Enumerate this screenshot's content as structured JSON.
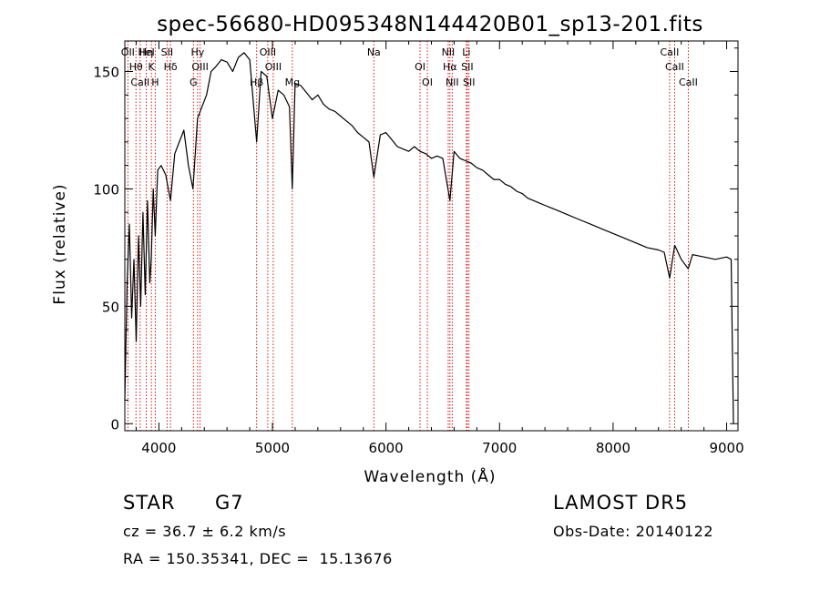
{
  "chart_data": {
    "type": "line",
    "title": "spec-56680-HD095348N144420B01_sp13-201.fits",
    "xlabel": "Wavelength (Å)",
    "ylabel": "Flux (relative)",
    "xlim": [
      3700,
      9100
    ],
    "ylim": [
      -3,
      163
    ],
    "xticks": [
      {
        "label": "4000",
        "value": 4000
      },
      {
        "label": "5000",
        "value": 5000
      },
      {
        "label": "6000",
        "value": 6000
      },
      {
        "label": "7000",
        "value": 7000
      },
      {
        "label": "8000",
        "value": 8000
      },
      {
        "label": "9000",
        "value": 9000
      }
    ],
    "yticks": [
      {
        "label": "0",
        "value": 0
      },
      {
        "label": "50",
        "value": 50
      },
      {
        "label": "100",
        "value": 100
      },
      {
        "label": "150",
        "value": 150
      }
    ],
    "grid": false,
    "series": [
      {
        "color": "#000000",
        "x": [
          3700,
          3720,
          3740,
          3760,
          3780,
          3800,
          3820,
          3840,
          3860,
          3880,
          3900,
          3920,
          3933,
          3950,
          3968,
          3990,
          4020,
          4060,
          4102,
          4140,
          4180,
          4220,
          4260,
          4300,
          4340,
          4380,
          4420,
          4460,
          4500,
          4550,
          4600,
          4650,
          4700,
          4750,
          4800,
          4861,
          4900,
          4950,
          5000,
          5050,
          5100,
          5150,
          5175,
          5200,
          5250,
          5300,
          5350,
          5400,
          5450,
          5500,
          5550,
          5600,
          5650,
          5700,
          5750,
          5800,
          5850,
          5893,
          5950,
          6000,
          6050,
          6100,
          6150,
          6200,
          6250,
          6300,
          6350,
          6400,
          6450,
          6500,
          6563,
          6600,
          6650,
          6700,
          6750,
          6800,
          6850,
          6900,
          6950,
          7000,
          7050,
          7100,
          7150,
          7200,
          7250,
          7300,
          7350,
          7400,
          7450,
          7500,
          7600,
          7700,
          7800,
          7900,
          8000,
          8100,
          8200,
          8300,
          8400,
          8450,
          8498,
          8542,
          8600,
          8662,
          8700,
          8800,
          8900,
          9000,
          9040,
          9060
        ],
        "y": [
          10,
          60,
          85,
          45,
          70,
          35,
          80,
          50,
          90,
          55,
          95,
          60,
          70,
          100,
          80,
          108,
          110,
          106,
          95,
          115,
          120,
          125,
          110,
          100,
          130,
          135,
          140,
          150,
          152,
          155,
          154,
          150,
          156,
          158,
          155,
          120,
          150,
          148,
          130,
          142,
          140,
          135,
          100,
          145,
          144,
          141,
          138,
          140,
          136,
          134,
          133,
          131,
          129,
          127,
          124,
          122,
          120,
          105,
          123,
          124,
          121,
          118,
          117,
          116,
          118,
          116,
          115,
          113,
          114,
          113,
          95,
          116,
          113,
          112,
          111,
          109,
          108,
          106,
          104,
          104,
          102,
          101,
          99,
          98,
          96,
          95,
          94,
          93,
          92,
          91,
          89,
          87,
          85,
          83,
          81,
          79,
          77,
          75,
          74,
          73,
          62,
          76,
          70,
          66,
          72,
          71,
          70,
          71,
          70,
          0
        ]
      }
    ],
    "lines": [
      {
        "x": 3727,
        "labels": [
          "OII"
        ]
      },
      {
        "x": 3798,
        "labels": [
          "Hθ"
        ]
      },
      {
        "x": 3835,
        "labels": [
          "CaII"
        ]
      },
      {
        "x": 3889,
        "labels": [
          "HeI",
          "Hη"
        ]
      },
      {
        "x": 3934,
        "labels": [
          "K"
        ]
      },
      {
        "x": 3968,
        "labels": [
          "H"
        ]
      },
      {
        "x": 4072,
        "labels": [
          "SII"
        ]
      },
      {
        "x": 4102,
        "labels": [
          "Hδ"
        ]
      },
      {
        "x": 4304,
        "labels": [
          "G"
        ]
      },
      {
        "x": 4341,
        "labels": [
          "Hγ"
        ]
      },
      {
        "x": 4363,
        "labels": [
          "OIII"
        ]
      },
      {
        "x": 4861,
        "labels": [
          "Hβ"
        ]
      },
      {
        "x": 4959,
        "labels": [
          "OIII"
        ]
      },
      {
        "x": 5007,
        "labels": [
          "OIII"
        ]
      },
      {
        "x": 5175,
        "labels": [
          "Mg"
        ]
      },
      {
        "x": 5893,
        "labels": [
          "Na"
        ]
      },
      {
        "x": 6300,
        "labels": [
          "OI"
        ]
      },
      {
        "x": 6364,
        "labels": [
          "OI"
        ]
      },
      {
        "x": 6548,
        "labels": [
          "NII"
        ]
      },
      {
        "x": 6563,
        "labels": [
          "Hα"
        ]
      },
      {
        "x": 6583,
        "labels": [
          "NII"
        ]
      },
      {
        "x": 6708,
        "labels": [
          "Li"
        ]
      },
      {
        "x": 6716,
        "labels": [
          "SII"
        ]
      },
      {
        "x": 6731,
        "labels": [
          "SII"
        ]
      },
      {
        "x": 8498,
        "labels": [
          "CaII"
        ]
      },
      {
        "x": 8542,
        "labels": [
          "CaII"
        ]
      },
      {
        "x": 8662,
        "labels": [
          "CaII"
        ]
      }
    ],
    "line_color": "#cc0000"
  },
  "info": {
    "object_type": "STAR",
    "subclass": "G7",
    "survey": "LAMOST DR5",
    "cz": "cz = 36.7 ± 6.2 km/s",
    "coords": "RA = 150.35341, DEC =  15.13676",
    "obs_date": "Obs-Date: 20140122"
  }
}
